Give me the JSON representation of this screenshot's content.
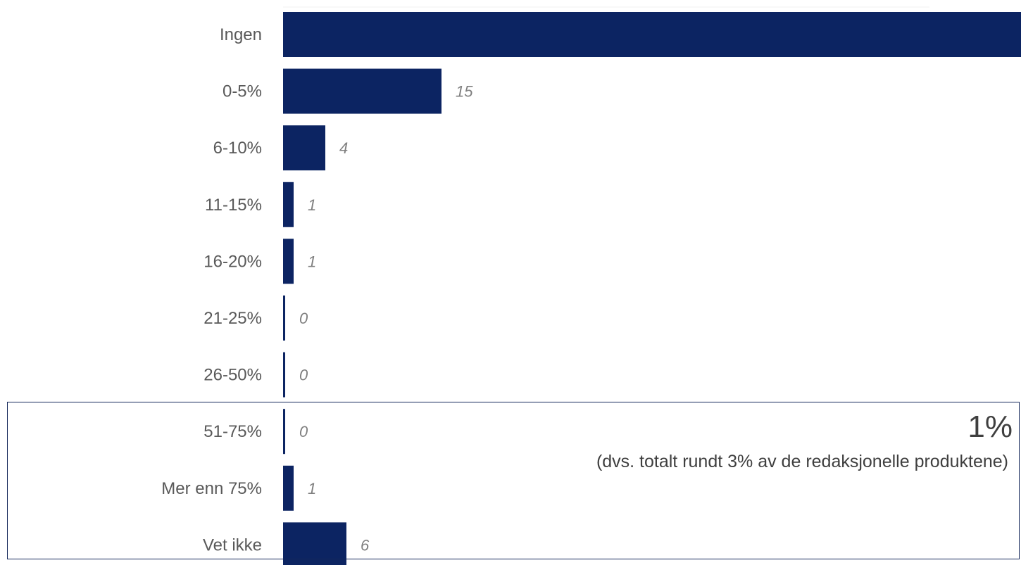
{
  "chart_data": {
    "type": "bar",
    "orientation": "horizontal",
    "categories": [
      "Ingen",
      "0-5%",
      "6-10%",
      "11-15%",
      "16-20%",
      "21-25%",
      "26-50%",
      "51-75%",
      "Mer enn 75%",
      "Vet ikke"
    ],
    "values": [
      72,
      15,
      4,
      1,
      1,
      0,
      0,
      0,
      1,
      6
    ],
    "bar_color": "#0c2462",
    "xlim": [
      0,
      75
    ],
    "grid": false,
    "legend": "none"
  },
  "callout": {
    "value": "1%",
    "note": "(dvs. totalt rundt 3% av de redaksjonelle produktene)",
    "highlighted_categories": [
      "51-75%",
      "Mer enn 75%"
    ]
  }
}
